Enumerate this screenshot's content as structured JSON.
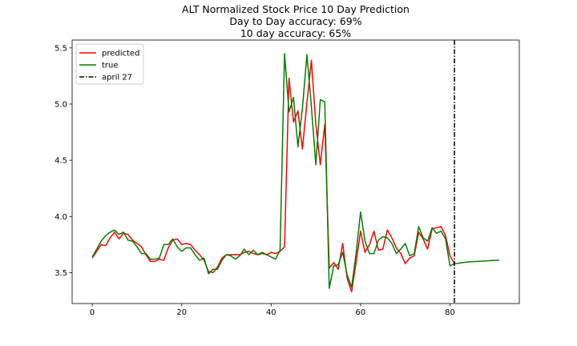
{
  "chart_data": {
    "type": "line",
    "title_lines": [
      "ALT Normalized Stock Price 10 Day Prediction",
      "Day to Day accuracy: 69%",
      "10 day accuracy: 65%"
    ],
    "xlabel": "",
    "ylabel": "",
    "xlim": [
      -4.5,
      95.5
    ],
    "ylim": [
      3.225,
      5.57
    ],
    "x_ticks": [
      0,
      20,
      40,
      60,
      80
    ],
    "y_ticks": [
      3.5,
      4.0,
      4.5,
      5.0,
      5.5
    ],
    "y_tick_labels": [
      "3.5",
      "4.0",
      "4.5",
      "5.0",
      "5.5"
    ],
    "grid": false,
    "legend_position": "top-left",
    "series": [
      {
        "name": "predicted",
        "color": "#ff0000",
        "style": "solid",
        "x": [
          0,
          1,
          2,
          3,
          4,
          5,
          6,
          7,
          8,
          9,
          10,
          11,
          12,
          13,
          14,
          15,
          16,
          17,
          18,
          19,
          20,
          21,
          22,
          23,
          24,
          25,
          26,
          27,
          28,
          29,
          30,
          31,
          32,
          33,
          34,
          35,
          36,
          37,
          38,
          39,
          40,
          41,
          42,
          43,
          44,
          45,
          46,
          47,
          48,
          49,
          50,
          51,
          52,
          53,
          54,
          55,
          56,
          57,
          58,
          59,
          60,
          61,
          62,
          63,
          64,
          65,
          66,
          67,
          68,
          69,
          70,
          71,
          72,
          73,
          74,
          75,
          76,
          77,
          78,
          79,
          80,
          81
        ],
        "y": [
          3.63,
          3.69,
          3.75,
          3.74,
          3.81,
          3.86,
          3.8,
          3.85,
          3.84,
          3.79,
          3.76,
          3.73,
          3.66,
          3.6,
          3.6,
          3.62,
          3.61,
          3.72,
          3.79,
          3.8,
          3.75,
          3.76,
          3.75,
          3.7,
          3.66,
          3.61,
          3.51,
          3.5,
          3.55,
          3.63,
          3.66,
          3.66,
          3.66,
          3.66,
          3.68,
          3.69,
          3.67,
          3.66,
          3.67,
          3.66,
          3.68,
          3.67,
          3.69,
          3.73,
          5.23,
          4.84,
          4.94,
          4.6,
          5.01,
          5.39,
          4.82,
          4.46,
          4.82,
          3.54,
          3.59,
          3.53,
          3.76,
          3.45,
          3.33,
          3.59,
          3.87,
          3.68,
          3.75,
          3.87,
          3.7,
          3.71,
          3.88,
          3.81,
          3.72,
          3.67,
          3.58,
          3.63,
          3.65,
          3.86,
          3.8,
          3.71,
          3.89,
          3.9,
          3.91,
          3.83,
          3.65,
          3.58
        ]
      },
      {
        "name": "true",
        "color": "#008000",
        "style": "solid",
        "x": [
          0,
          1,
          2,
          3,
          4,
          5,
          6,
          7,
          8,
          9,
          10,
          11,
          12,
          13,
          14,
          15,
          16,
          17,
          18,
          19,
          20,
          21,
          22,
          23,
          24,
          25,
          26,
          27,
          28,
          29,
          30,
          31,
          32,
          33,
          34,
          35,
          36,
          37,
          38,
          39,
          40,
          41,
          42,
          43,
          44,
          45,
          46,
          47,
          48,
          49,
          50,
          51,
          52,
          53,
          54,
          55,
          56,
          57,
          58,
          59,
          60,
          61,
          62,
          63,
          64,
          65,
          66,
          67,
          68,
          69,
          70,
          71,
          72,
          73,
          74,
          75,
          76,
          77,
          78,
          79,
          80,
          81,
          82,
          83,
          84,
          85,
          86,
          87,
          88,
          89,
          90,
          91
        ],
        "y": [
          3.64,
          3.71,
          3.78,
          3.83,
          3.86,
          3.88,
          3.84,
          3.86,
          3.79,
          3.78,
          3.73,
          3.67,
          3.67,
          3.62,
          3.62,
          3.63,
          3.75,
          3.75,
          3.8,
          3.73,
          3.69,
          3.72,
          3.72,
          3.66,
          3.61,
          3.63,
          3.49,
          3.53,
          3.53,
          3.61,
          3.66,
          3.65,
          3.62,
          3.65,
          3.71,
          3.66,
          3.7,
          3.66,
          3.68,
          3.66,
          3.64,
          3.62,
          3.7,
          5.45,
          4.93,
          5.06,
          4.62,
          4.96,
          5.44,
          4.98,
          4.46,
          5.04,
          5.02,
          3.36,
          3.56,
          3.57,
          3.68,
          3.48,
          3.37,
          3.67,
          4.04,
          3.78,
          3.67,
          3.67,
          3.79,
          3.82,
          3.81,
          3.76,
          3.67,
          3.71,
          3.76,
          3.65,
          3.67,
          3.91,
          3.81,
          3.78,
          3.9,
          3.85,
          3.87,
          3.8,
          3.56,
          3.58,
          3.585,
          3.59,
          3.595,
          3.597,
          3.6,
          3.602,
          3.605,
          3.607,
          3.61,
          3.61
        ]
      }
    ],
    "vline": {
      "name": "april 27",
      "x": 81,
      "color": "#000000",
      "style": "dashdot"
    }
  }
}
